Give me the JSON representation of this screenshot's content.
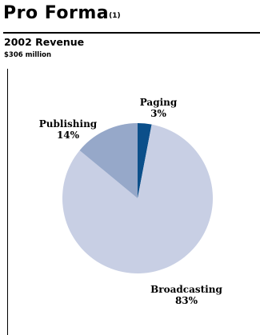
{
  "header": {
    "title": "Pro Forma",
    "title_note": "(1)",
    "subtitle": "2002 Revenue",
    "total": "$306 million"
  },
  "chart_data": {
    "type": "pie",
    "slices": [
      {
        "label": "Paging",
        "value": 3,
        "value_label": "3%",
        "color": "#0b4f8a"
      },
      {
        "label": "Broadcasting",
        "value": 83,
        "value_label": "83%",
        "color": "#c8cfe4"
      },
      {
        "label": "Publishing",
        "value": 14,
        "value_label": "14%",
        "color": "#96a8c9"
      }
    ],
    "start": "12 o'clock",
    "direction": "clockwise"
  }
}
